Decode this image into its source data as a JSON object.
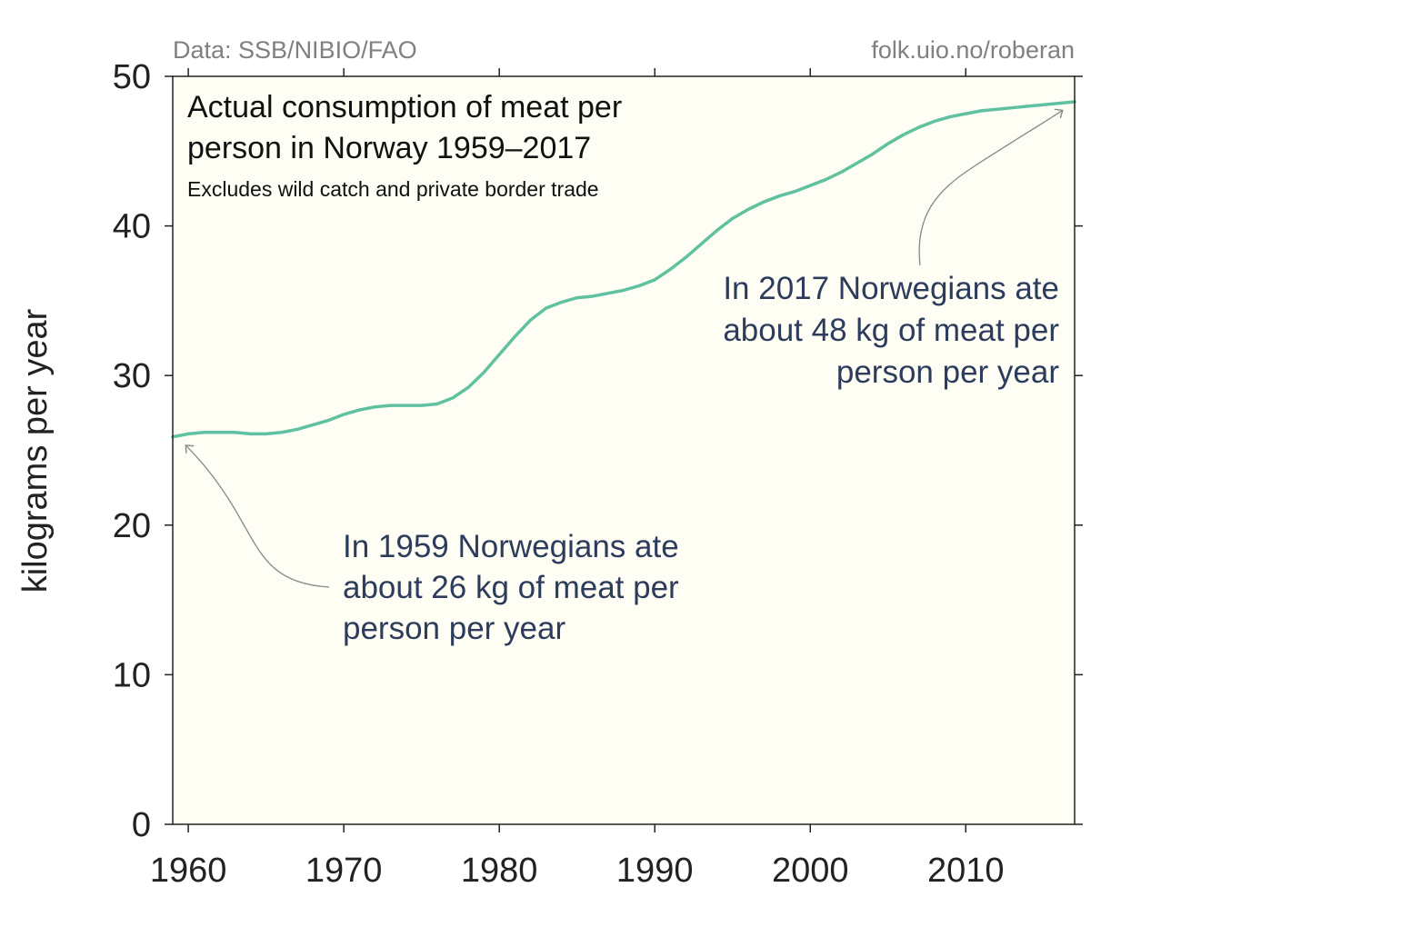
{
  "chart_data": {
    "type": "line",
    "title": [
      "Actual consumption of meat per",
      "person in Norway 1959–2017"
    ],
    "subtitle": "Excludes wild catch and private border trade",
    "source_left": "Data: SSB/NIBIO/FAO",
    "source_right": "folk.uio.no/roberan",
    "ylabel": "kilograms per year",
    "xlabel": "",
    "xlim": [
      1959,
      2017
    ],
    "ylim": [
      0,
      50
    ],
    "xticks": [
      1960,
      1970,
      1980,
      1990,
      2000,
      2010
    ],
    "yticks": [
      0,
      10,
      20,
      30,
      40,
      50
    ],
    "grid": false,
    "colors": {
      "line": "#5fc1a0",
      "plot_bg": "#fefef4",
      "annotation": "#2d3c5c",
      "arrow": "#888888"
    },
    "series": [
      {
        "name": "",
        "x": [
          1959,
          1960,
          1961,
          1962,
          1963,
          1964,
          1965,
          1966,
          1967,
          1968,
          1969,
          1970,
          1971,
          1972,
          1973,
          1974,
          1975,
          1976,
          1977,
          1978,
          1979,
          1980,
          1981,
          1982,
          1983,
          1984,
          1985,
          1986,
          1987,
          1988,
          1989,
          1990,
          1991,
          1992,
          1993,
          1994,
          1995,
          1996,
          1997,
          1998,
          1999,
          2000,
          2001,
          2002,
          2003,
          2004,
          2005,
          2006,
          2007,
          2008,
          2009,
          2010,
          2011,
          2012,
          2013,
          2014,
          2015,
          2016,
          2017
        ],
        "values": [
          25.9,
          26.1,
          26.2,
          26.2,
          26.2,
          26.1,
          26.1,
          26.2,
          26.4,
          26.7,
          27.0,
          27.4,
          27.7,
          27.9,
          28.0,
          28.0,
          28.0,
          28.1,
          28.5,
          29.2,
          30.2,
          31.4,
          32.6,
          33.7,
          34.5,
          34.9,
          35.2,
          35.3,
          35.5,
          35.7,
          36.0,
          36.4,
          37.1,
          37.9,
          38.8,
          39.7,
          40.5,
          41.1,
          41.6,
          42.0,
          42.3,
          42.7,
          43.1,
          43.6,
          44.2,
          44.8,
          45.5,
          46.1,
          46.6,
          47.0,
          47.3,
          47.5,
          47.7,
          47.8,
          47.9,
          48.0,
          48.1,
          48.2,
          48.3
        ]
      }
    ],
    "annotations": [
      {
        "lines": [
          "In 1959 Norwegians ate",
          "about 26 kg of meat per",
          "person per year"
        ],
        "align": "left",
        "points_to": [
          1959,
          25.9
        ]
      },
      {
        "lines": [
          "In 2017 Norwegians ate",
          "about 48 kg of meat per",
          "person per year"
        ],
        "align": "right",
        "points_to": [
          2017,
          48.3
        ]
      }
    ]
  }
}
